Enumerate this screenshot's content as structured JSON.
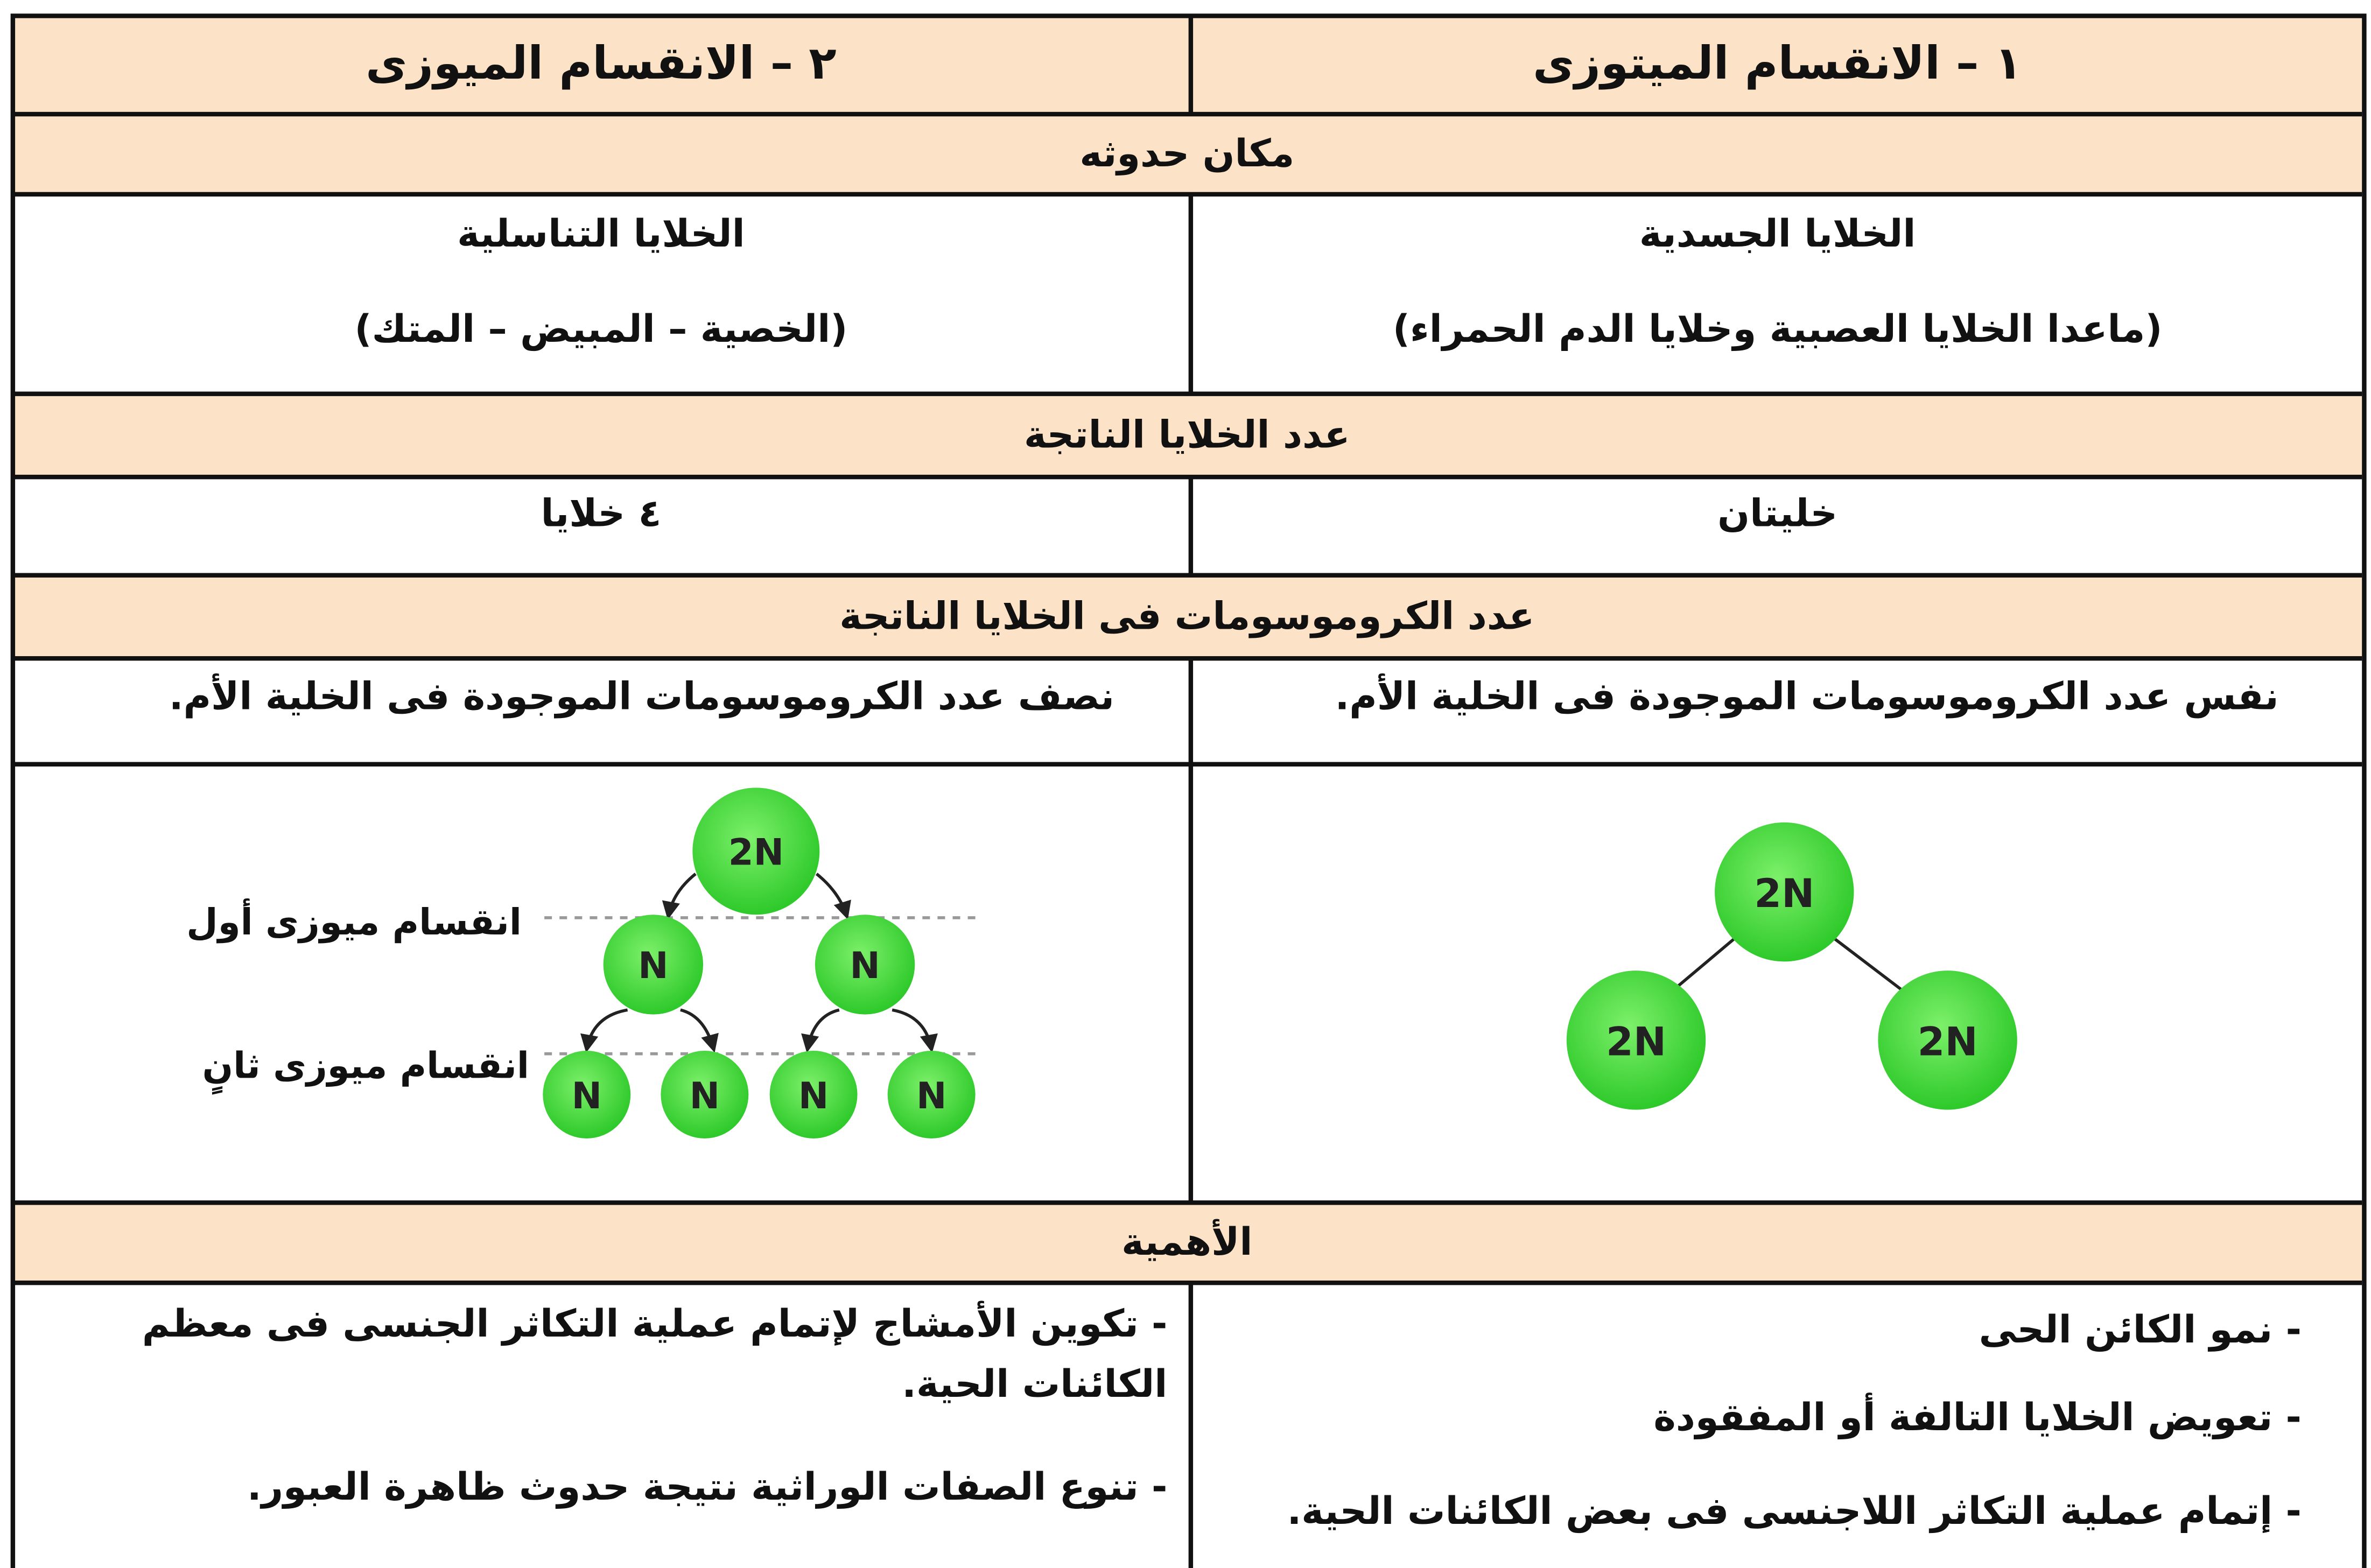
{
  "table": {
    "headers": [
      "١ – الانقسام الميتوزى",
      "٢ – الانقسام الميوزى"
    ],
    "sections": [
      {
        "title": "مكان حدوثه",
        "mitosis": [
          "الخلايا الجسدية",
          "(ماعدا الخلايا العصبية وخلايا الدم الحمراء)"
        ],
        "meiosis": [
          "الخلايا التناسلية",
          "(الخصية – المبيض – المتك)"
        ]
      },
      {
        "title": "عدد الخلايا الناتجة",
        "mitosis": [
          "خليتان"
        ],
        "meiosis": [
          "٤ خلايا"
        ]
      },
      {
        "title": "عدد الكروموسومات فى الخلايا الناتجة",
        "mitosis": [
          "نفس عدد الكروموسومات الموجودة فى الخلية الأم."
        ],
        "meiosis": [
          "نصف عدد الكروموسومات الموجودة فى الخلية الأم."
        ]
      },
      {
        "title": "الأهمية",
        "mitosis": [
          "- نمو الكائن الحى",
          "- تعويض الخلايا التالفة أو المفقودة",
          "- إتمام عملية التكاثر اللاجنسى فى بعض الكائنات الحية."
        ],
        "meiosis": [
          "- تكوين الأمشاج لإتمام عملية التكاثر الجنسى فى معظم الكائنات الحية.",
          "- تنوع الصفات الوراثية نتيجة حدوث ظاهرة العبور."
        ]
      }
    ],
    "diagrams": {
      "mitosis": {
        "parent": "2N",
        "children": [
          "2N",
          "2N"
        ]
      },
      "meiosis": {
        "parent": "2N",
        "first_division": [
          "N",
          "N"
        ],
        "second_division": [
          "N",
          "N",
          "N",
          "N"
        ],
        "stage_labels": [
          "انقسام ميوزى أول",
          "انقسام ميوزى ثانٍ"
        ]
      }
    }
  }
}
